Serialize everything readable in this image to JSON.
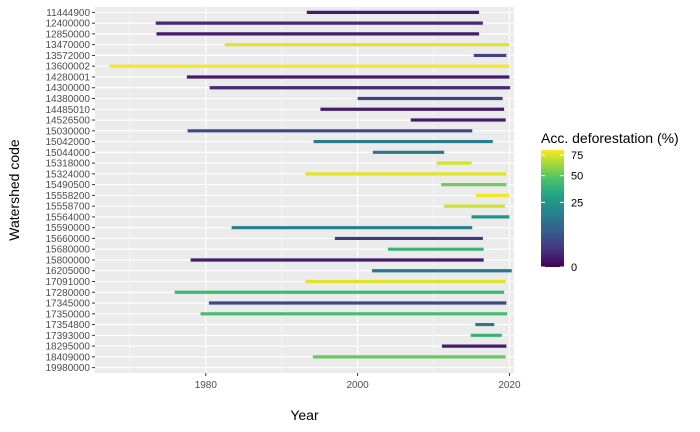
{
  "chart_data": {
    "type": "segment",
    "xlabel": "Year",
    "ylabel": "Watershed code",
    "xlim": [
      1965.4,
      2020.6
    ],
    "x_ticks": [
      1980,
      2000,
      2020
    ],
    "grid": true,
    "legend": {
      "title": "Acc. deforestation (%)",
      "placement": "right",
      "color_scale": "viridis (sqrt-like)",
      "tick_labels": [
        "0",
        "25",
        "50",
        "75"
      ],
      "ticks": [
        0,
        25,
        50,
        75
      ],
      "range": [
        0,
        82
      ]
    },
    "categories": [
      "19980000",
      "18409000",
      "18295000",
      "17393000",
      "17354800",
      "17350000",
      "17345000",
      "17280000",
      "17091000",
      "16205000",
      "15800000",
      "15680000",
      "15660000",
      "15590000",
      "15564000",
      "15558700",
      "15558200",
      "15490500",
      "15324000",
      "15318000",
      "15044000",
      "15042000",
      "15030000",
      "14526500",
      "14485010",
      "14380000",
      "14300000",
      "14280001",
      "13600002",
      "13572000",
      "13470000",
      "12850000",
      "12400000",
      "11444900"
    ],
    "segments": [
      {
        "code": "18409000",
        "start": 1994.1,
        "end": 2019.5,
        "value": 48
      },
      {
        "code": "18295000",
        "start": 2011.1,
        "end": 2019.6,
        "value": 0.5
      },
      {
        "code": "17393000",
        "start": 2014.9,
        "end": 2019.0,
        "value": 35
      },
      {
        "code": "17354800",
        "start": 2015.5,
        "end": 2018.0,
        "value": 13
      },
      {
        "code": "17350000",
        "start": 1979.3,
        "end": 2019.7,
        "value": 40
      },
      {
        "code": "17345000",
        "start": 1980.4,
        "end": 2019.6,
        "value": 4
      },
      {
        "code": "17280000",
        "start": 1975.9,
        "end": 2019.3,
        "value": 38
      },
      {
        "code": "17091000",
        "start": 1993.1,
        "end": 2019.5,
        "value": 75
      },
      {
        "code": "16205000",
        "start": 2001.9,
        "end": 2020.3,
        "value": 13
      },
      {
        "code": "15800000",
        "start": 1978.0,
        "end": 2016.6,
        "value": 0.5
      },
      {
        "code": "15680000",
        "start": 2004.0,
        "end": 2016.6,
        "value": 35
      },
      {
        "code": "15660000",
        "start": 1997.0,
        "end": 2016.5,
        "value": 2
      },
      {
        "code": "15590000",
        "start": 1983.4,
        "end": 2015.1,
        "value": 15
      },
      {
        "code": "15564000",
        "start": 2015.0,
        "end": 2020.0,
        "value": 22
      },
      {
        "code": "15558700",
        "start": 2011.4,
        "end": 2019.4,
        "value": 70
      },
      {
        "code": "15558200",
        "start": 2015.6,
        "end": 2020.0,
        "value": 80
      },
      {
        "code": "15490500",
        "start": 2011.0,
        "end": 2019.6,
        "value": 50
      },
      {
        "code": "15324000",
        "start": 1993.1,
        "end": 2019.6,
        "value": 75
      },
      {
        "code": "15318000",
        "start": 2010.4,
        "end": 2015.0,
        "value": 72
      },
      {
        "code": "15044000",
        "start": 2002.0,
        "end": 2011.4,
        "value": 12
      },
      {
        "code": "15042000",
        "start": 1994.2,
        "end": 2017.8,
        "value": 14
      },
      {
        "code": "15030000",
        "start": 1977.6,
        "end": 2015.1,
        "value": 4
      },
      {
        "code": "14526500",
        "start": 2007.0,
        "end": 2019.5,
        "value": 0.5
      },
      {
        "code": "14485010",
        "start": 1995.1,
        "end": 2019.3,
        "value": 0.5
      },
      {
        "code": "14380000",
        "start": 2000.0,
        "end": 2019.1,
        "value": 3
      },
      {
        "code": "14300000",
        "start": 1980.5,
        "end": 2020.1,
        "value": 1
      },
      {
        "code": "14280001",
        "start": 1977.5,
        "end": 2020.0,
        "value": 0.5
      },
      {
        "code": "13600002",
        "start": 1967.3,
        "end": 2020.0,
        "value": 80
      },
      {
        "code": "13572000",
        "start": 2015.3,
        "end": 2019.6,
        "value": 3
      },
      {
        "code": "13470000",
        "start": 1982.5,
        "end": 2020.0,
        "value": 75
      },
      {
        "code": "12850000",
        "start": 1973.5,
        "end": 2016.0,
        "value": 0.5
      },
      {
        "code": "12400000",
        "start": 1973.4,
        "end": 2016.5,
        "value": 1
      },
      {
        "code": "11444900",
        "start": 1993.3,
        "end": 2016.0,
        "value": 0.5
      }
    ]
  }
}
